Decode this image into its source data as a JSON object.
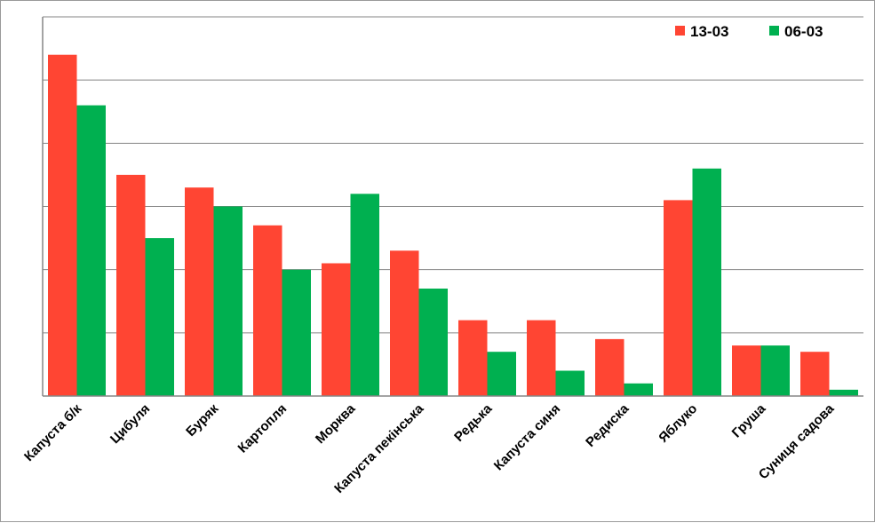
{
  "chart_data": {
    "type": "bar",
    "categories": [
      "Капуста б/к",
      "Цибуля",
      "Буряк",
      "Картопля",
      "Морква",
      "Капуста пекінська",
      "Редька",
      "Капуста синя",
      "Редиска",
      "Яблуко",
      "Груша",
      "Суниця садова"
    ],
    "series": [
      {
        "name": "13-03",
        "color": "#ff4533",
        "values": [
          5.4,
          3.5,
          3.3,
          2.7,
          2.1,
          2.3,
          1.2,
          1.2,
          0.9,
          3.1,
          0.8,
          0.7
        ]
      },
      {
        "name": "06-03",
        "color": "#00b050",
        "values": [
          4.6,
          2.5,
          3.0,
          2.0,
          3.2,
          1.7,
          0.7,
          0.4,
          0.2,
          3.6,
          0.8,
          0.1
        ]
      }
    ],
    "ylim": [
      0,
      6
    ],
    "yticks": [
      0,
      1,
      2,
      3,
      4,
      5,
      6
    ],
    "grid": true,
    "legend_position": "top-right"
  }
}
